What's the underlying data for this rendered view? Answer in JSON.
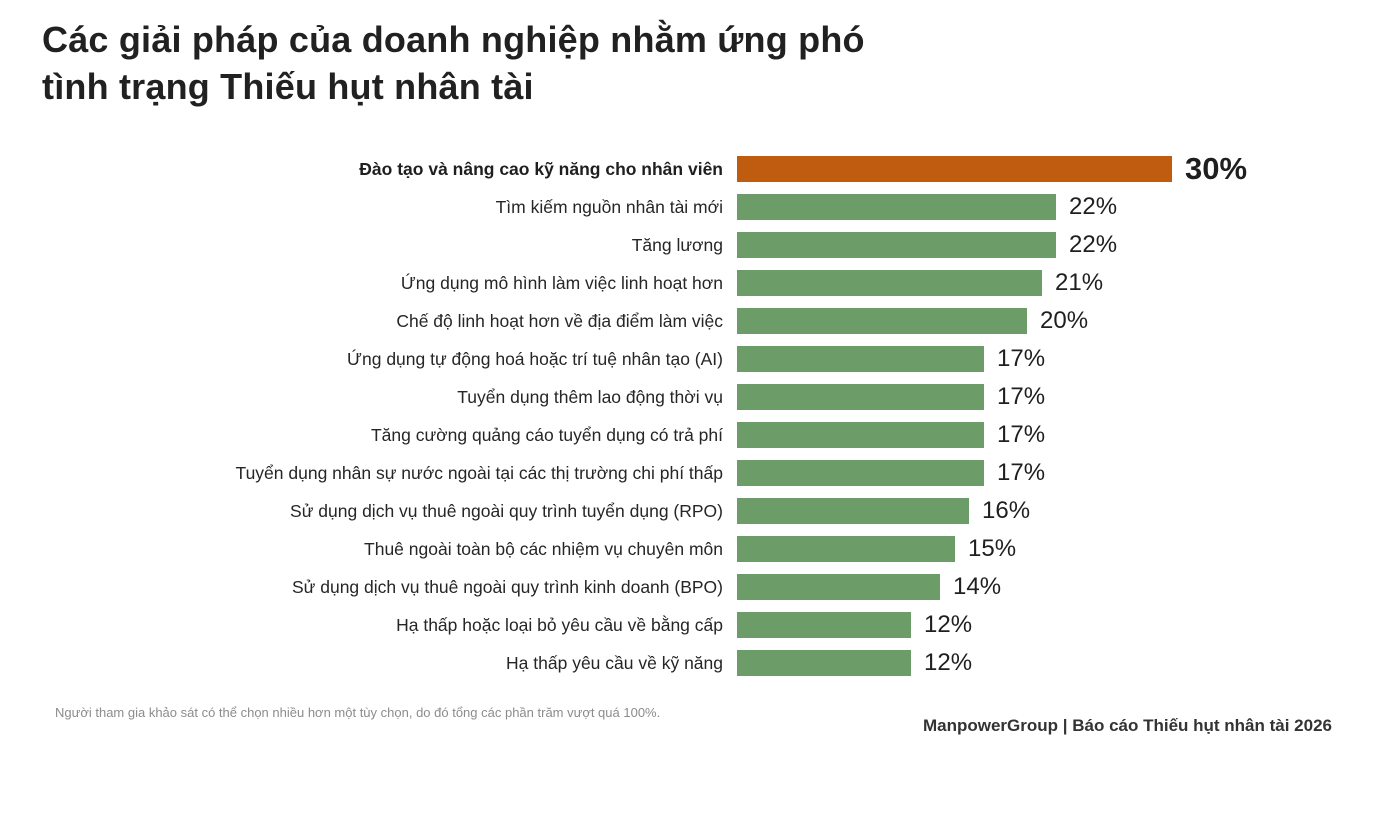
{
  "header": {
    "title_line1": "Các giải pháp của doanh nghiệp nhằm ứng phó",
    "title_line2": "tình trạng Thiếu hụt nhân tài"
  },
  "chart_data": {
    "type": "bar",
    "orientation": "horizontal",
    "title": "Các giải pháp của doanh nghiệp nhằm ứng phó tình trạng Thiếu hụt nhân tài",
    "categories": [
      "Đào tạo và nâng cao kỹ năng cho nhân viên",
      "Tìm kiếm nguồn nhân tài mới",
      "Tăng lương",
      "Ứng dụng mô hình làm việc linh hoạt hơn",
      "Chế độ linh hoạt hơn về địa điểm làm việc",
      "Ứng dụng tự động hoá hoặc trí tuệ nhân tạo (AI)",
      "Tuyển dụng thêm lao động thời vụ",
      "Tăng cường quảng cáo tuyển dụng có trả phí",
      "Tuyển dụng nhân sự nước ngoài tại các thị trường chi phí thấp",
      "Sử dụng dịch vụ thuê ngoài quy trình tuyển dụng (RPO)",
      "Thuê ngoài toàn bộ các nhiệm vụ chuyên môn",
      "Sử dụng dịch vụ thuê ngoài quy trình kinh doanh (BPO)",
      "Hạ thấp hoặc loại bỏ yêu cầu về bằng cấp",
      "Hạ thấp yêu cầu về kỹ năng"
    ],
    "values": [
      30,
      22,
      22,
      21,
      20,
      17,
      17,
      17,
      17,
      16,
      15,
      14,
      12,
      12
    ],
    "value_labels": [
      "30%",
      "22%",
      "22%",
      "21%",
      "20%",
      "17%",
      "17%",
      "17%",
      "17%",
      "16%",
      "15%",
      "14%",
      "12%",
      "12%"
    ],
    "highlight_index": 0,
    "highlight_color": "#C05C10",
    "bar_color": "#6C9D68",
    "xlim": [
      0,
      30
    ],
    "grid": false,
    "legend": false
  },
  "footnote": "Người tham gia khảo sát có thể chọn nhiều hơn một tùy chọn, do đó tổng các phần trăm vượt quá 100%.",
  "source": "ManpowerGroup | Báo cáo Thiếu hụt nhân tài 2026",
  "colors": {
    "title_text": "#212121",
    "label_text": "#262626",
    "footnote_text": "#8c8c8c",
    "source_text": "#333333"
  }
}
